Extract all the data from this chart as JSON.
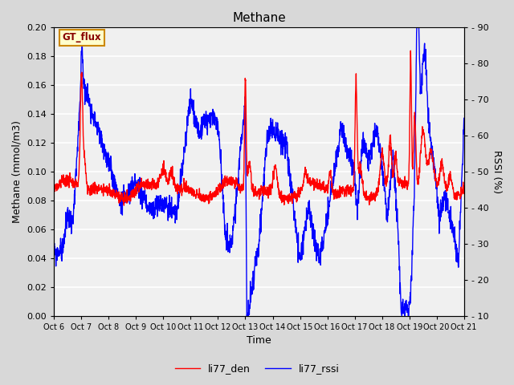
{
  "title": "Methane",
  "ylabel_left": "Methane (mmol/m3)",
  "ylabel_right": "RSSI (%)",
  "xlabel": "Time",
  "ylim_left": [
    0.0,
    0.2
  ],
  "ylim_right": [
    10,
    90
  ],
  "yticks_left": [
    0.0,
    0.02,
    0.04,
    0.06,
    0.08,
    0.1,
    0.12,
    0.14,
    0.16,
    0.18,
    0.2
  ],
  "yticks_right": [
    10,
    20,
    30,
    40,
    50,
    60,
    70,
    80,
    90
  ],
  "xtick_labels": [
    "Oct 6",
    "Oct 7",
    "Oct 8",
    "Oct 9",
    "Oct 10",
    "Oct 11",
    "Oct 12",
    "Oct 13",
    "Oct 14",
    "Oct 15",
    "Oct 16",
    "Oct 17",
    "Oct 18",
    "Oct 19",
    "Oct 20",
    "Oct 21"
  ],
  "legend_labels": [
    "li77_den",
    "li77_rssi"
  ],
  "legend_colors": [
    "red",
    "blue"
  ],
  "fig_bg_color": "#d8d8d8",
  "plot_bg_color": "#f0f0f0",
  "annotation_text": "GT_flux",
  "annotation_bg": "#ffffcc",
  "annotation_border": "#cc8800",
  "line_width": 1.0
}
